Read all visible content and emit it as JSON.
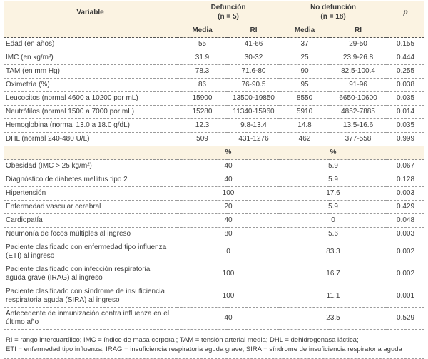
{
  "header": {
    "variable": "Variable",
    "group1": {
      "line1": "Defunción",
      "line2": "(n = 5)"
    },
    "group2": {
      "line1": "No defunción",
      "line2": "(n = 18)"
    },
    "media": "Media",
    "ri": "RI",
    "p": "p",
    "percent": "%"
  },
  "rows_media_ri": [
    {
      "variable": "Edad (en años)",
      "d_media": "55",
      "d_ri": "41-66",
      "nd_media": "37",
      "nd_ri": "29-50",
      "p": "0.155"
    },
    {
      "variable": "IMC (en kg/m²)",
      "d_media": "31.9",
      "d_ri": "30-32",
      "nd_media": "25",
      "nd_ri": "23.9-26.8",
      "p": "0.444"
    },
    {
      "variable": "TAM (en mm Hg)",
      "d_media": "78.3",
      "d_ri": "71.6-80",
      "nd_media": "90",
      "nd_ri": "82.5-100.4",
      "p": "0.255"
    },
    {
      "variable": "Oximetría (%)",
      "d_media": "86",
      "d_ri": "76-90.5",
      "nd_media": "95",
      "nd_ri": "91-96",
      "p": "0.038"
    },
    {
      "variable": "Leucocitos (normal 4600 a 10200 por mL)",
      "d_media": "15900",
      "d_ri": "13500-19850",
      "nd_media": "8550",
      "nd_ri": "6650-10600",
      "p": "0.035"
    },
    {
      "variable": "Neutrófilos (normal 1500 a 7000 por mL)",
      "d_media": "15280",
      "d_ri": "11340-15960",
      "nd_media": "5910",
      "nd_ri": "4852-7885",
      "p": "0.014"
    },
    {
      "variable": "Hemoglobina (normal 13.0 a 18.0 g/dL)",
      "d_media": "12.3",
      "d_ri": "9.8-13.4",
      "nd_media": "14.8",
      "nd_ri": "13.5-16.6",
      "p": "0.035"
    },
    {
      "variable": "DHL (normal 240-480 U/L)",
      "d_media": "509",
      "d_ri": "431-1276",
      "nd_media": "462",
      "nd_ri": "377-558",
      "p": "0.999"
    }
  ],
  "rows_percent": [
    {
      "variable": "Obesidad (IMC > 25 kg/m²)",
      "d_pct": "40",
      "nd_pct": "5.9",
      "p": "0.067"
    },
    {
      "variable": "Diagnóstico de diabetes mellitus tipo 2",
      "d_pct": "40",
      "nd_pct": "5.9",
      "p": "0.128"
    },
    {
      "variable": "Hipertensión",
      "d_pct": "100",
      "nd_pct": "17.6",
      "p": "0.003"
    },
    {
      "variable": "Enfermedad vascular cerebral",
      "d_pct": "20",
      "nd_pct": "5.9",
      "p": "0.429"
    },
    {
      "variable": "Cardiopatía",
      "d_pct": "40",
      "nd_pct": "0",
      "p": "0.048"
    },
    {
      "variable": "Neumonía de focos múltiples al ingreso",
      "d_pct": "80",
      "nd_pct": "5.6",
      "p": "0.003"
    },
    {
      "variable": "Paciente clasificado con enfermedad tipo influenza (ETI) al ingreso",
      "d_pct": "0",
      "nd_pct": "83.3",
      "p": "0.002"
    },
    {
      "variable": "Paciente clasificado con infección respiratoria aguda grave (IRAG) al ingreso",
      "d_pct": "100",
      "nd_pct": "16.7",
      "p": "0.002"
    },
    {
      "variable": "Paciente clasificado con síndrome de insuficiencia respiratoria aguda (SIRA) al ingreso",
      "d_pct": "100",
      "nd_pct": "11.1",
      "p": "0.001"
    },
    {
      "variable": "Antecedente de inmunización contra influenza en el último año",
      "d_pct": "40",
      "nd_pct": "23.5",
      "p": "0.529"
    }
  ],
  "footnotes": [
    "RI = rango intercuartílico; IMC = índice de masa corporal; TAM = tensión arterial media; DHL = dehidrogenasa láctica;",
    "ETI = enfermedad tipo influenza; IRAG = insuficiencia respiratoria aguda grave; SIRA = síndrome de insuficiencia respiratoria aguda"
  ],
  "colors": {
    "header_bg": "#FBF3E2",
    "text": "#3D3D3D",
    "rule_dark": "#555555",
    "rule_light": "#9B9B9B"
  }
}
